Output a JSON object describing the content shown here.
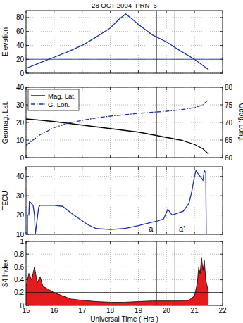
{
  "chart_data": [
    {
      "type": "line",
      "title": "28 OCT 2004  PRN  6",
      "y_label": "Elevation",
      "x": [
        15,
        15.5,
        16,
        16.5,
        17,
        17.5,
        18,
        18.3,
        18.55,
        18.8,
        19,
        19.5,
        20,
        20.5,
        21,
        21.5
      ],
      "series": [
        {
          "color": "#1c2fa8",
          "line_style": "solid",
          "values": [
            7,
            15,
            23,
            31,
            40,
            52,
            65,
            77,
            85,
            77,
            70,
            55,
            45,
            32,
            20,
            5
          ]
        }
      ],
      "xlim": [
        15,
        22
      ],
      "xticks": [
        15,
        16,
        17,
        18,
        19,
        20,
        21,
        22
      ],
      "ylim": [
        0,
        90
      ],
      "yticks": [
        0,
        20,
        40,
        60,
        80
      ],
      "grid": true,
      "tick_labels": "y",
      "hline": 20,
      "vlines": [
        19.65,
        20.3
      ]
    },
    {
      "type": "line",
      "y_label": "Geomag. Lat.",
      "y2_label": "Geog. Long.",
      "x": [
        15,
        15.5,
        16,
        16.5,
        17,
        17.5,
        18,
        18.5,
        19,
        19.5,
        20,
        20.5,
        21,
        21.3,
        21.5
      ],
      "series": [
        {
          "name": "Mag. Lat.",
          "color": "#000000",
          "line_style": "solid",
          "values": [
            22,
            21.3,
            20.5,
            19.5,
            18.5,
            17.5,
            16.5,
            15.5,
            14.5,
            13,
            11.5,
            10,
            7.5,
            5,
            2
          ]
        },
        {
          "name": "G. Lon.",
          "color": "#1c2fa8",
          "line_style": "dashdot",
          "axis": "y2",
          "values": [
            63.5,
            66.5,
            68.5,
            69.8,
            70.6,
            71.3,
            71.8,
            72.2,
            72.6,
            72.9,
            73.2,
            73.6,
            74.2,
            75,
            76.5
          ]
        }
      ],
      "xlim": [
        15,
        22
      ],
      "xticks": [
        15,
        16,
        17,
        18,
        19,
        20,
        21,
        22
      ],
      "ylim": [
        0,
        40
      ],
      "yticks": [
        0,
        10,
        20,
        30,
        40
      ],
      "y2lim": [
        60,
        80
      ],
      "y2ticks": [
        60,
        65,
        70,
        75,
        80
      ],
      "grid": true,
      "tick_labels": "y",
      "legend": "upper left",
      "vlines": [
        19.65,
        20.3
      ]
    },
    {
      "type": "line",
      "y_label": "TECU",
      "x": [
        15.05,
        15.05,
        15.1,
        15.12,
        15.25,
        15.3,
        15.33,
        15.45,
        15.5,
        16,
        16.3,
        16.7,
        17.2,
        17.5,
        18,
        18.5,
        19,
        19.4,
        19.7,
        19.9,
        20.05,
        20.2,
        20.4,
        20.6,
        20.8,
        20.9,
        21.0,
        21.05,
        21.2,
        21.3,
        21.35,
        21.4,
        21.42
      ],
      "series": [
        {
          "color": "#1c2fa8",
          "line_style": "solid",
          "values": [
            10,
            20,
            20,
            27,
            25,
            20,
            10,
            24,
            25,
            25,
            24.5,
            20,
            15,
            13,
            12.5,
            13,
            14.5,
            16,
            17,
            18,
            23,
            20,
            21,
            22,
            26,
            32,
            40,
            43,
            40,
            38,
            43,
            42,
            10
          ]
        }
      ],
      "xlim": [
        15,
        22
      ],
      "xticks": [
        15,
        16,
        17,
        18,
        19,
        20,
        21,
        22
      ],
      "ylim": [
        10,
        45
      ],
      "yticks": [
        10,
        20,
        30,
        40
      ],
      "grid": true,
      "tick_labels": "y",
      "vlines": [
        19.65,
        20.3
      ],
      "annotations": [
        {
          "text": "a",
          "x": 19.45,
          "y": 11.5
        },
        {
          "text": "a'",
          "x": 20.55,
          "y": 11.5
        }
      ]
    },
    {
      "type": "area",
      "y_label": "S4 Index",
      "x_label": "Universal Time ( Hrs )",
      "x": [
        15,
        15.1,
        15.2,
        15.3,
        15.4,
        15.5,
        15.6,
        15.8,
        16,
        16.3,
        16.6,
        17,
        17.5,
        18,
        18.5,
        19,
        19.5,
        20,
        20.5,
        20.8,
        21,
        21.1,
        21.15,
        21.2,
        21.25,
        21.3,
        21.35,
        21.4,
        21.45,
        21.5
      ],
      "series": [
        {
          "color": "#e41a1c",
          "values": [
            0.3,
            0.5,
            0.4,
            0.6,
            0.35,
            0.45,
            0.3,
            0.25,
            0.2,
            0.15,
            0.1,
            0.08,
            0.06,
            0.05,
            0.05,
            0.06,
            0.07,
            0.07,
            0.07,
            0.08,
            0.15,
            0.35,
            0.6,
            0.5,
            0.75,
            0.55,
            0.7,
            0.4,
            0.3,
            0.2
          ]
        }
      ],
      "xlim": [
        15,
        22
      ],
      "xticks": [
        15,
        16,
        17,
        18,
        19,
        20,
        21,
        22
      ],
      "ylim": [
        0,
        1
      ],
      "yticks": [
        0,
        0.2,
        0.4,
        0.6,
        0.8,
        1
      ],
      "grid": true,
      "hline": 0.2,
      "vlines": [
        19.65,
        20.3
      ]
    }
  ]
}
